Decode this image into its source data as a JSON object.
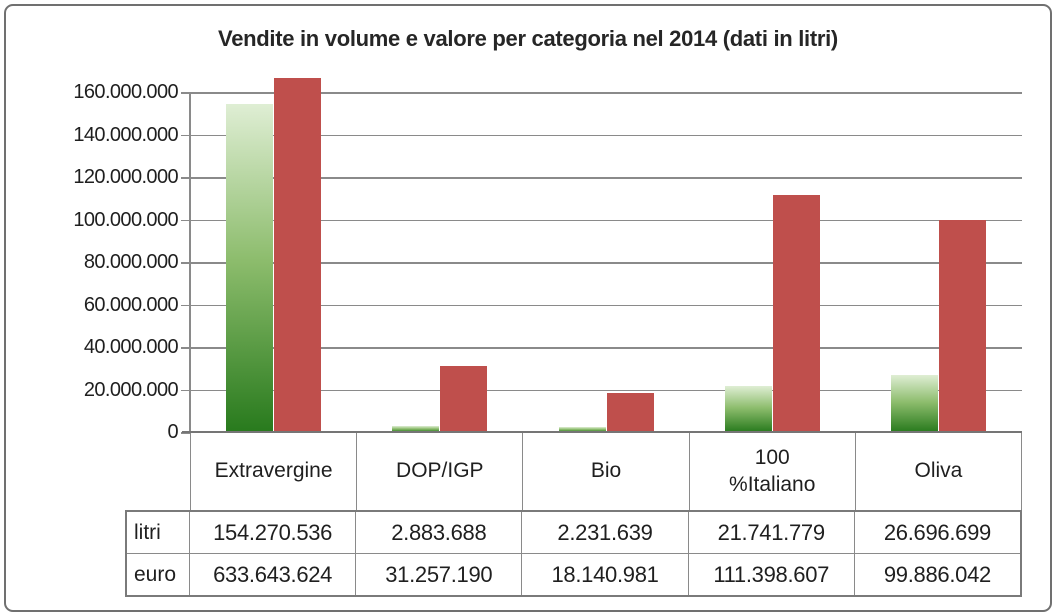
{
  "chart_data": {
    "type": "bar",
    "title": "Vendite in volume e valore per categoria nel 2014 (dati in litri)",
    "categories": [
      "Extravergine",
      "DOP/IGP",
      "Bio",
      "100 %Italiano",
      "Oliva"
    ],
    "category_display": [
      [
        "Extravergine"
      ],
      [
        "DOP/IGP"
      ],
      [
        "Bio"
      ],
      [
        "100",
        "%Italiano"
      ],
      [
        "Oliva"
      ]
    ],
    "series": [
      {
        "name": "litri",
        "values": [
          154270536,
          2883688,
          2231639,
          21741779,
          26696699
        ],
        "values_fmt": [
          "154.270.536",
          "2.883.688",
          "2.231.639",
          "21.741.779",
          "26.696.699"
        ],
        "fill": "gradient-green",
        "color_top": "#dfeed4",
        "color_mid": "#8cbc6c",
        "color_bottom": "#287a1d"
      },
      {
        "name": "euro",
        "values": [
          633643624,
          31257190,
          18140981,
          111398607,
          99886042
        ],
        "values_fmt": [
          "633.643.624",
          "31.257.190",
          "18.140.981",
          "111.398.607",
          "99.886.042"
        ],
        "fill": "solid-red",
        "color": "#bf4f4c"
      }
    ],
    "ylim": [
      0,
      160000000
    ],
    "ytick_step": 20000000,
    "ytick_labels": [
      "0",
      "20.000.000",
      "40.000.000",
      "60.000.000",
      "80.000.000",
      "100.000.000",
      "120.000.000",
      "140.000.000",
      "160.000.000"
    ],
    "grid": true,
    "gridline_color": "#8a8a8a",
    "legend": "none (series names shown as data-table row headers)",
    "note": "euro bar for Extravergine exceeds axis maximum and is clipped at plot top"
  }
}
